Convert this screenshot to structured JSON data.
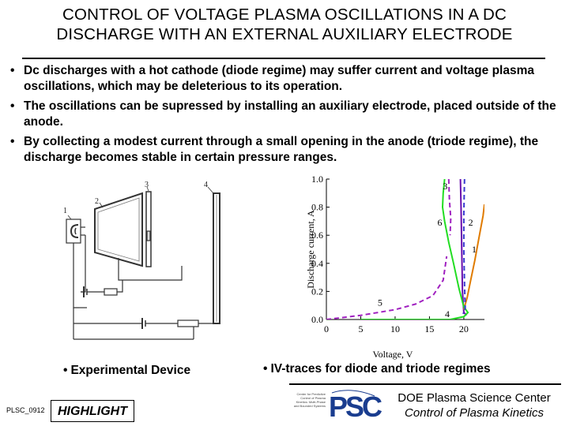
{
  "title": {
    "line1": "CONTROL OF VOLTAGE PLASMA OSCILLATIONS IN A DC",
    "line2": "DISCHARGE  WITH AN EXTERNAL AUXILIARY ELECTRODE"
  },
  "bullets": [
    "Dc discharges with a hot cathode (diode regime) may suffer current and voltage plasma oscillations, which may be deleterious to its operation.",
    "The oscillations can be supressed by installing an auxiliary electrode, placed outside of the anode.",
    "By collecting a modest current through a small opening in the anode (triode regime), the discharge becomes stable in certain pressure ranges."
  ],
  "bullet_symbol": "•",
  "device": {
    "labels": [
      "1",
      "2",
      "3",
      "4"
    ],
    "caption": "Experimental Device"
  },
  "chart_caption": "IV-traces for diode and triode regimes",
  "chart_data": {
    "type": "line",
    "xlabel": "Voltage, V",
    "ylabel": "Discharge current, A",
    "xlim": [
      0,
      23
    ],
    "ylim": [
      0,
      1.0
    ],
    "xticks": [
      "0",
      "5",
      "10",
      "15",
      "20"
    ],
    "yticks": [
      "0.0",
      "0.2",
      "0.4",
      "0.6",
      "0.8",
      "1.0"
    ],
    "curve_labels": [
      {
        "text": "1",
        "x": 21.5,
        "y": 0.5
      },
      {
        "text": "2",
        "x": 21.0,
        "y": 0.69
      },
      {
        "text": "3",
        "x": 17.3,
        "y": 0.95
      },
      {
        "text": "4",
        "x": 17.6,
        "y": 0.04
      },
      {
        "text": "5",
        "x": 7.8,
        "y": 0.12
      },
      {
        "text": "6",
        "x": 16.5,
        "y": 0.69
      }
    ],
    "series": [
      {
        "color": "#6a0dad",
        "style": "solid",
        "points": [
          [
            19.5,
            1.0
          ],
          [
            19.6,
            0.8
          ],
          [
            19.7,
            0.5
          ],
          [
            19.8,
            0.2
          ],
          [
            20.0,
            0.05
          ],
          [
            20.4,
            0.03
          ]
        ]
      },
      {
        "color": "#e07b00",
        "style": "solid",
        "points": [
          [
            20.0,
            0.07
          ],
          [
            20.5,
            0.16
          ],
          [
            21.0,
            0.28
          ],
          [
            21.6,
            0.42
          ],
          [
            22.2,
            0.58
          ],
          [
            22.8,
            0.74
          ],
          [
            23.0,
            0.82
          ]
        ]
      },
      {
        "color": "#22dd22",
        "style": "solid",
        "points": [
          [
            17.2,
            1.0
          ],
          [
            17.0,
            0.9
          ],
          [
            16.9,
            0.8
          ],
          [
            17.2,
            0.7
          ],
          [
            17.8,
            0.55
          ],
          [
            18.5,
            0.4
          ],
          [
            19.3,
            0.22
          ],
          [
            20.0,
            0.09
          ],
          [
            20.6,
            0.05
          ],
          [
            20.0,
            0.02
          ],
          [
            18.0,
            0.0
          ],
          [
            14.0,
            0.0
          ],
          [
            10.0,
            0.0
          ],
          [
            5.0,
            0.0
          ]
        ]
      },
      {
        "color": "#a020c0",
        "style": "dashed",
        "points": [
          [
            17.8,
            1.0
          ],
          [
            17.9,
            0.85
          ],
          [
            18.1,
            0.72
          ],
          [
            18.0,
            0.6
          ]
        ]
      },
      {
        "color": "#a020c0",
        "style": "dashed",
        "points": [
          [
            0.0,
            0.0
          ],
          [
            5.0,
            0.03
          ],
          [
            10.0,
            0.07
          ],
          [
            13.0,
            0.11
          ],
          [
            15.5,
            0.17
          ],
          [
            17.0,
            0.28
          ],
          [
            17.5,
            0.45
          ]
        ]
      },
      {
        "color": "#3a3ad0",
        "style": "dashed",
        "points": [
          [
            20.1,
            1.0
          ],
          [
            20.0,
            0.75
          ],
          [
            20.0,
            0.5
          ],
          [
            20.1,
            0.25
          ],
          [
            20.2,
            0.08
          ],
          [
            19.9,
            0.04
          ]
        ]
      }
    ]
  },
  "footer": {
    "id": "PLSC_0912",
    "highlight": "HIGHLIGHT",
    "logo_small_text": "Center for Predictive Control of Plasma Kinetics: Multi-Phase and Bounded Systems",
    "logo_letters": "PSC",
    "center_name": "DOE Plasma Science Center",
    "center_subtitle": "Control of Plasma Kinetics"
  },
  "colors": {
    "logo_blue": "#1a3d8f",
    "text": "#000000"
  }
}
